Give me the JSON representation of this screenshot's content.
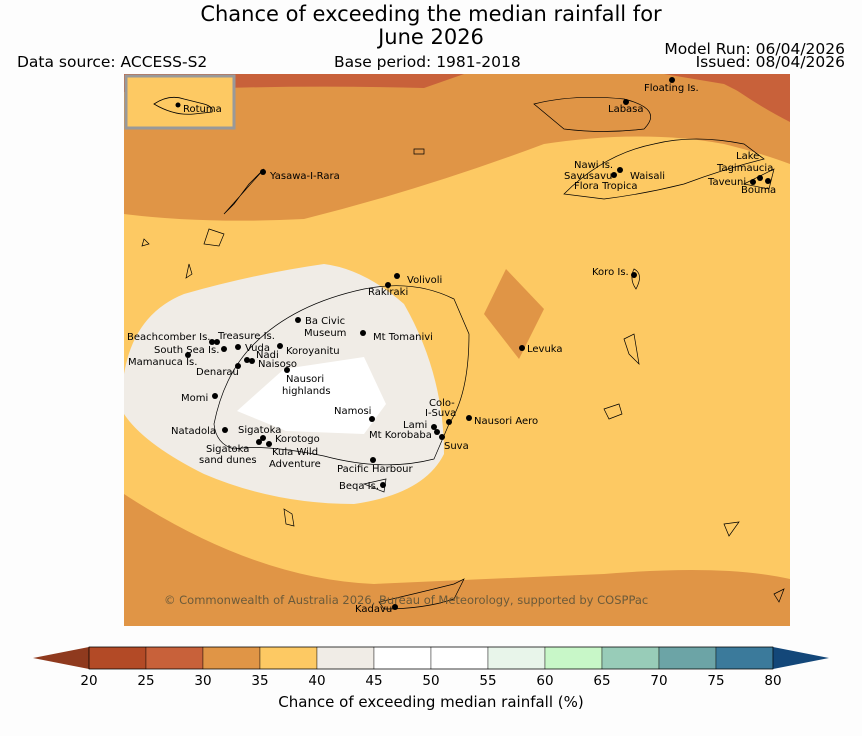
{
  "title_line1": "Chance of exceeding the median rainfall for",
  "title_line2": "June 2026",
  "data_source": "Data source: ACCESS-S2",
  "base_period": "Base period: 1981-2018",
  "model_run": "Model Run: 06/04/2026",
  "issued": "Issued: 08/04/2026",
  "copyright": "© Commonwealth of Australia 2026, Bureau of Meteorology, supported by COSPPac",
  "inset_label": "Rotuma",
  "places": [
    "Floating Is.",
    "Labasa",
    "Yasawa-I-Rara",
    "Nawi Is.",
    "Savusavu",
    "Waisali",
    "Flora Tropica",
    "Lake",
    "Tagimaucia",
    "Taveuni",
    "Bouma",
    "Volivoli",
    "Rakiraki",
    "Koro Is.",
    "Ba Civic",
    "Museum",
    "Mt Tomanivi",
    "Beachcomber Is.",
    "Treasure Is.",
    "South Sea Is.",
    "Vuda",
    "Koroyanitu",
    "Nadi",
    "Mamanuca Is.",
    "Naisoso",
    "Denarau",
    "Levuka",
    "Nausori",
    "highlands",
    "Momi",
    "Namosi",
    "Colo-",
    "I-Suva",
    "Nausori Aero",
    "Lami",
    "Mt Korobaba",
    "Natadola",
    "Sigatoka",
    "Korotogo",
    "Suva",
    "Kula Wild",
    "Adventure",
    "Sigatoka",
    "sand dunes",
    "Pacific Harbour",
    "Beqa Is.",
    "Kadavu"
  ],
  "colorbar": {
    "ticks": [
      "20",
      "25",
      "30",
      "35",
      "40",
      "45",
      "50",
      "55",
      "60",
      "65",
      "70",
      "75",
      "80"
    ],
    "colors": [
      "#b34a26",
      "#c8613a",
      "#e09546",
      "#fdc963",
      "#f0ece6",
      "#ffffff",
      "#ffffff",
      "#e8f5ea",
      "#c8f7c8",
      "#98ccb8",
      "#6ca4a6",
      "#3b7a9b",
      "#1b5587"
    ],
    "low_color": "#8f3a1e",
    "high_color": "#134779",
    "label": "Chance of exceeding median rainfall (%)"
  }
}
